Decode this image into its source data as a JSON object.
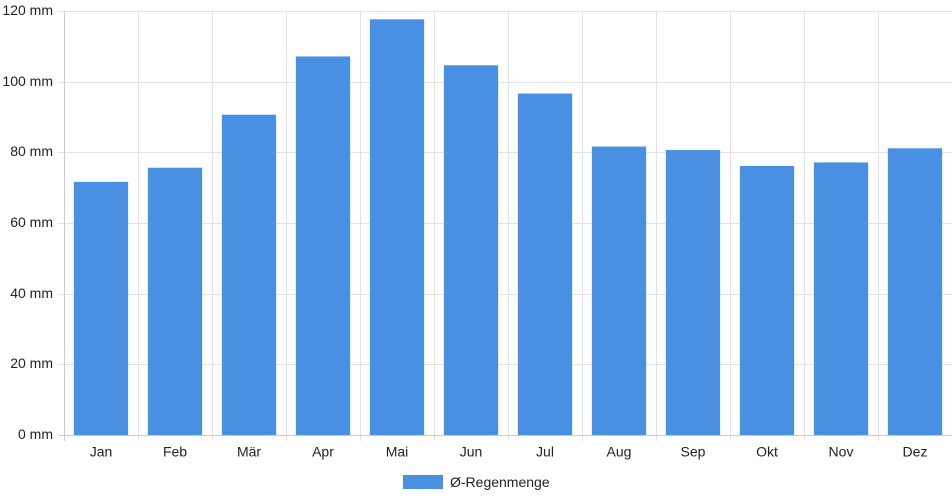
{
  "colors": {
    "bar": "#4a90e2",
    "grid": "#e3e3e3",
    "axis": "#cccccc",
    "text": "#222222"
  },
  "chart_data": {
    "type": "bar",
    "categories": [
      "Jan",
      "Feb",
      "Mär",
      "Apr",
      "Mai",
      "Jun",
      "Jul",
      "Aug",
      "Sep",
      "Okt",
      "Nov",
      "Dez"
    ],
    "series": [
      {
        "name": "Ø-Regenmenge",
        "values": [
          71.5,
          75.5,
          90.5,
          107,
          117.5,
          104.5,
          96.5,
          81.5,
          80.5,
          76,
          77,
          81
        ]
      }
    ],
    "yunit": "mm",
    "ylim": [
      0,
      120
    ],
    "yticks": [
      0,
      20,
      40,
      60,
      80,
      100,
      120
    ],
    "ytick_labels": [
      "0 mm",
      "20 mm",
      "40 mm",
      "60 mm",
      "80 mm",
      "100 mm",
      "120 mm"
    ],
    "grid": true,
    "legend_position": "bottom"
  }
}
